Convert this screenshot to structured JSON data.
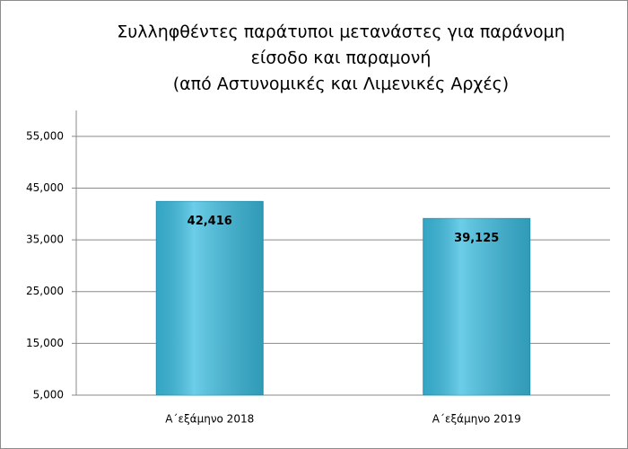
{
  "chart_data": {
    "type": "bar",
    "title": [
      "Συλληφθέντες παράτυποι μετανάστες για παράνομη",
      "είσοδο και παραμονή",
      "(από Αστυνομικές και Λιμενικές Αρχές)"
    ],
    "categories": [
      "Α΄εξάμηνο  2018",
      "Α΄εξάμηνο  2019"
    ],
    "values": [
      42416,
      39125
    ],
    "value_labels": [
      "42,416",
      "39,125"
    ],
    "color": "#3bbde0",
    "ylim": [
      5000,
      60000
    ],
    "yticks": [
      {
        "value": 5000,
        "label": "5,000"
      },
      {
        "value": 15000,
        "label": "15,000"
      },
      {
        "value": 25000,
        "label": "25,000"
      },
      {
        "value": 35000,
        "label": "35,000"
      },
      {
        "value": 45000,
        "label": "45,000"
      },
      {
        "value": 55000,
        "label": "55,000"
      }
    ],
    "grid": true
  }
}
